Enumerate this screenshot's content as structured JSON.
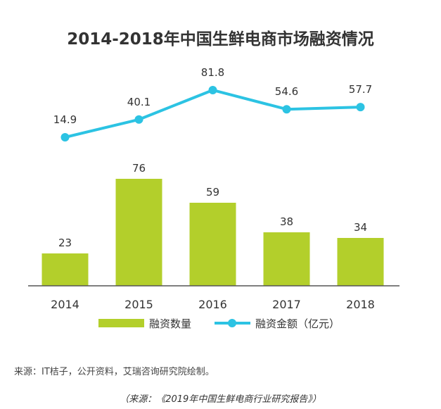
{
  "chart_data": {
    "type": "bar",
    "title": "2014-2018年中国生鲜电商市场融资情况",
    "categories": [
      "2014",
      "2015",
      "2016",
      "2017",
      "2018"
    ],
    "series": [
      {
        "name": "融资数量",
        "type": "bar",
        "values": [
          23,
          76,
          59,
          38,
          34
        ],
        "color": "#b3cf2b"
      },
      {
        "name": "融资金额（亿元）",
        "type": "line",
        "values": [
          14.9,
          40.1,
          81.8,
          54.6,
          57.7
        ],
        "color": "#2cc3e3"
      }
    ],
    "legend_position": "bottom",
    "grid": false
  },
  "source_note": "来源：IT桔子，公开资料，艾瑞咨询研究院绘制。",
  "caption": "（来源：《2019年中国生鲜电商行业研究报告》）"
}
